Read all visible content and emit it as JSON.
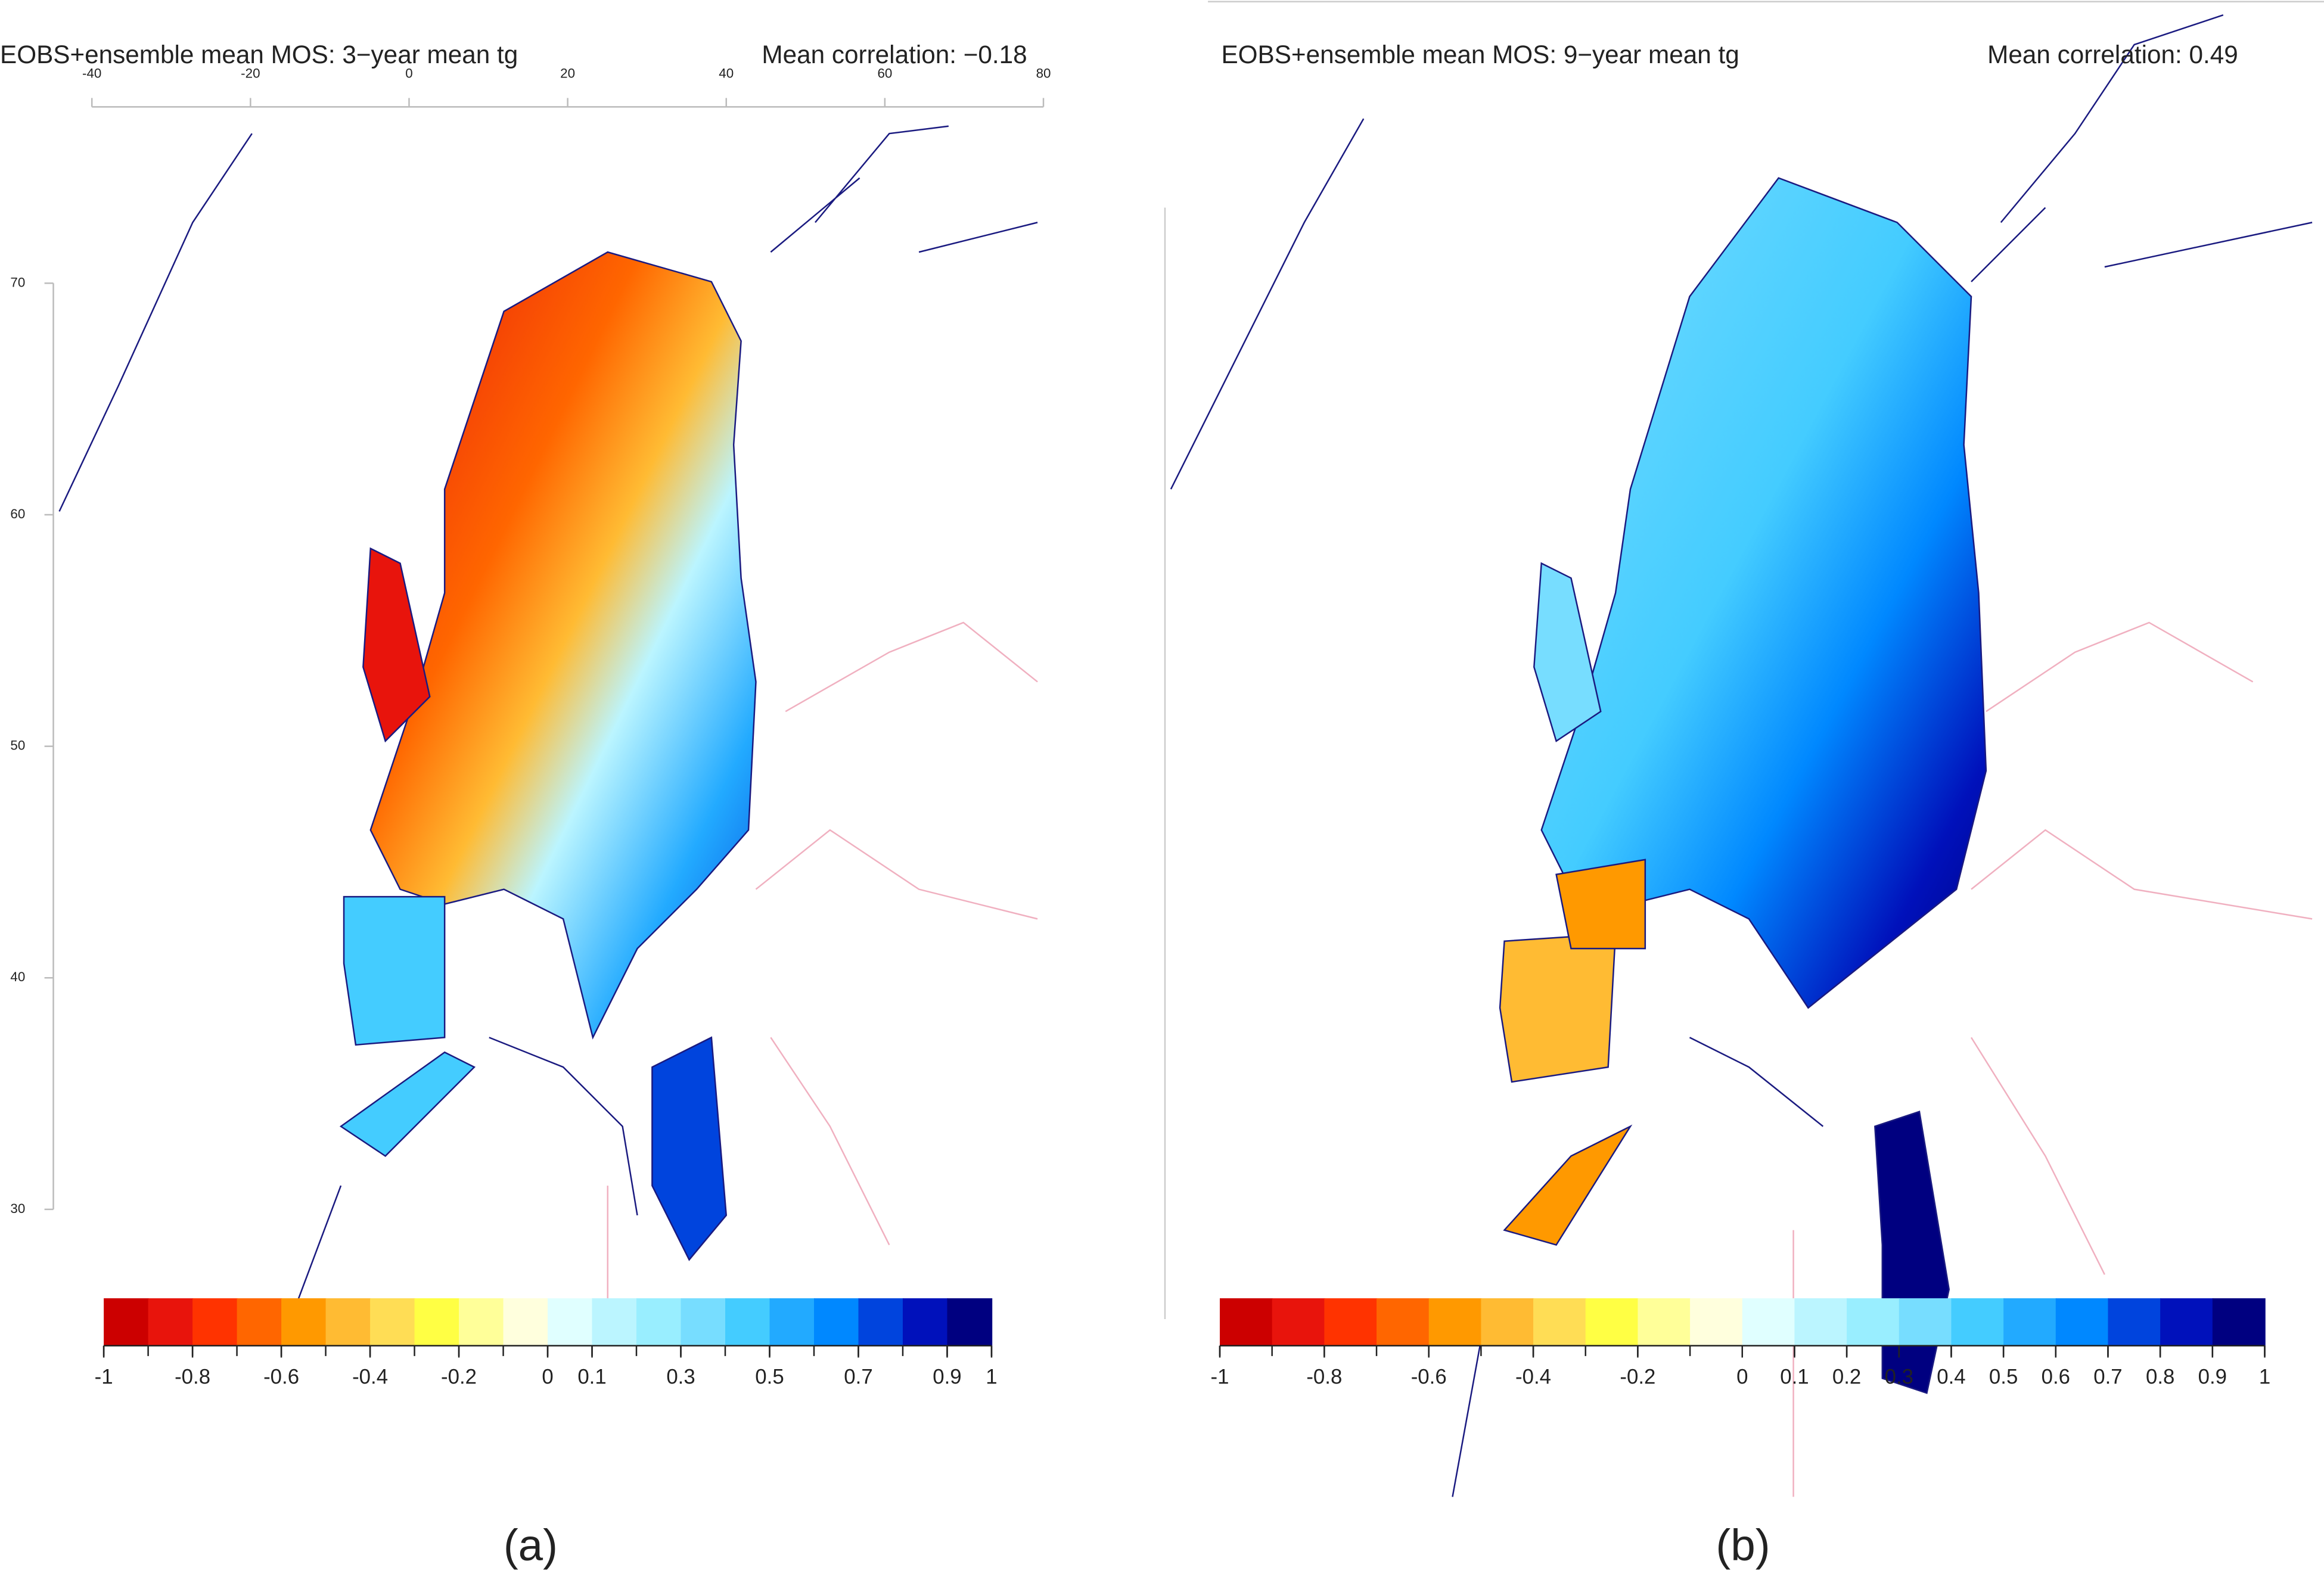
{
  "chart_data": [
    {
      "type": "map",
      "title": "EOBS+ensemble mean MOS: 3−year mean tg",
      "annotation": "Mean correlation: −0.18",
      "caption": "(a)",
      "xlim": [
        -40,
        80
      ],
      "xticks": [
        -40,
        -20,
        0,
        20,
        40,
        60,
        80
      ],
      "ylim": [
        30,
        70
      ],
      "yticks": [
        30,
        40,
        50,
        60,
        70
      ],
      "clim": [
        -1,
        1
      ],
      "colors": [
        "#cc0000",
        "#e8140c",
        "#ff3300",
        "#ff6600",
        "#ff9900",
        "#ffbb33",
        "#ffdd55",
        "#ffff44",
        "#ffff99",
        "#ffffdd",
        "#e0ffff",
        "#bbf5ff",
        "#99eeff",
        "#77ddff",
        "#44ccff",
        "#22aaff",
        "#0088ff",
        "#0044dd",
        "#0011bb",
        "#000080"
      ],
      "cticks": [
        -1,
        -0.8,
        -0.6,
        -0.4,
        -0.2,
        0,
        0.1,
        0.3,
        0.5,
        0.7,
        0.9,
        1
      ]
    },
    {
      "type": "map",
      "title": "EOBS+ensemble mean MOS: 9−year mean tg",
      "annotation": "Mean correlation: 0.49",
      "caption": "(b)",
      "clim": [
        -1,
        1
      ],
      "colors": [
        "#cc0000",
        "#e8140c",
        "#ff3300",
        "#ff6600",
        "#ff9900",
        "#ffbb33",
        "#ffdd55",
        "#ffff44",
        "#ffff99",
        "#ffffdd",
        "#e0ffff",
        "#bbf5ff",
        "#99eeff",
        "#77ddff",
        "#44ccff",
        "#22aaff",
        "#0088ff",
        "#0044dd",
        "#0011bb",
        "#000080"
      ],
      "cticks": [
        -1,
        -0.8,
        -0.6,
        -0.4,
        -0.2,
        0,
        0.1,
        0.2,
        0.3,
        0.4,
        0.5,
        0.6,
        0.7,
        0.8,
        0.9,
        1
      ]
    }
  ]
}
